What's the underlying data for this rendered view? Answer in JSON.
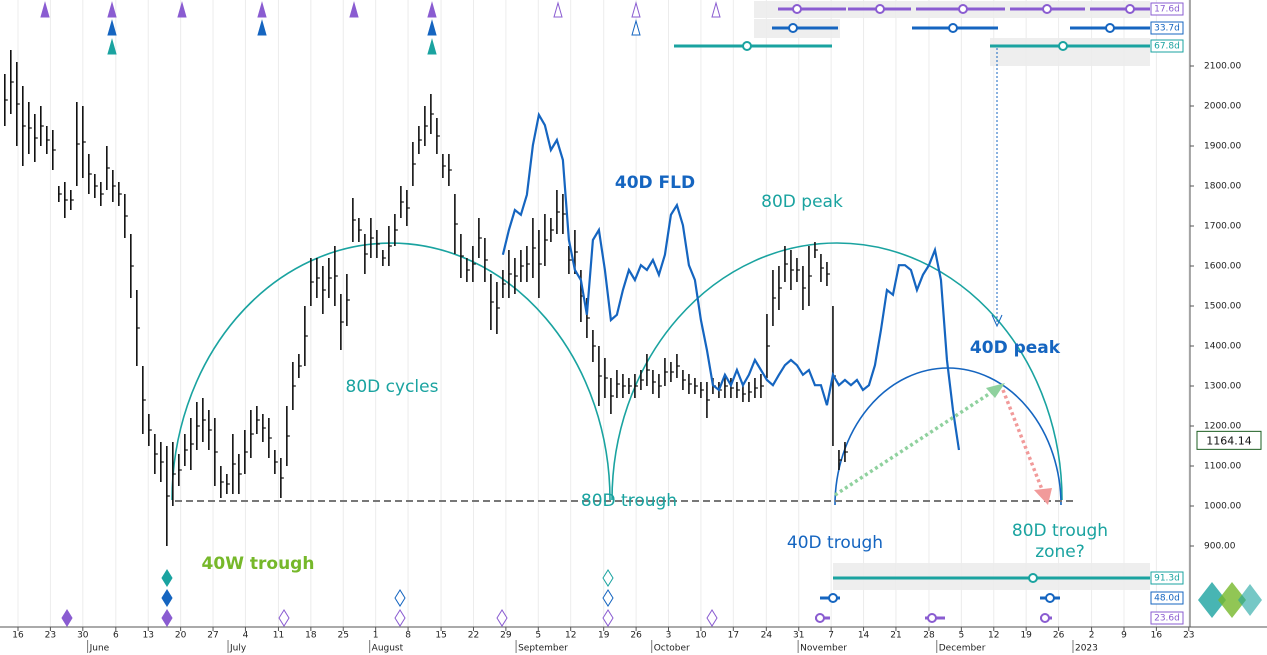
{
  "chart_data": {
    "type": "ohlc",
    "color": "#111111",
    "high": [
      2080,
      2140,
      2110,
      2050,
      2010,
      1980,
      2000,
      1950,
      1940,
      1800,
      1810,
      1790,
      2010,
      2000,
      1880,
      1830,
      1810,
      1900,
      1840,
      1810,
      1780,
      1680,
      1540,
      1350,
      1230,
      1180,
      1160,
      1150,
      1160,
      1130,
      1180,
      1220,
      1260,
      1270,
      1240,
      1220,
      1100,
      1080,
      1180,
      1130,
      1190,
      1240,
      1250,
      1230,
      1220,
      1140,
      1120,
      1250,
      1360,
      1380,
      1500,
      1620,
      1620,
      1600,
      1620,
      1650,
      1530,
      1580,
      1770,
      1720,
      1680,
      1720,
      1690,
      1640,
      1700,
      1730,
      1800,
      1790,
      1910,
      1950,
      2000,
      2030,
      1970,
      1880,
      1880,
      1780,
      1680,
      1620,
      1650,
      1720,
      1670,
      1580,
      1560,
      1590,
      1640,
      1620,
      1640,
      1650,
      1720,
      1690,
      1730,
      1720,
      1790,
      1780,
      1650,
      1690,
      1590,
      1520,
      1440,
      1400,
      1370,
      1320,
      1340,
      1330,
      1320,
      1330,
      1340,
      1380,
      1340,
      1330,
      1370,
      1360,
      1380,
      1340,
      1330,
      1320,
      1310,
      1310,
      1320,
      1310,
      1330,
      1320,
      1310,
      1300,
      1310,
      1320,
      1330,
      1480,
      1590,
      1600,
      1650,
      1640,
      1620,
      1600,
      1650,
      1660,
      1630,
      1610,
      1500,
      1140,
      1160
    ],
    "low": [
      1950,
      1980,
      1900,
      1850,
      1880,
      1860,
      1900,
      1880,
      1840,
      1760,
      1720,
      1740,
      1800,
      1820,
      1780,
      1770,
      1750,
      1790,
      1760,
      1750,
      1670,
      1520,
      1350,
      1180,
      1150,
      1080,
      1060,
      900,
      1000,
      1050,
      1100,
      1090,
      1140,
      1160,
      1140,
      1050,
      1020,
      1030,
      1030,
      1030,
      1080,
      1120,
      1180,
      1160,
      1120,
      1080,
      1020,
      1100,
      1240,
      1320,
      1350,
      1500,
      1520,
      1480,
      1520,
      1500,
      1390,
      1450,
      1660,
      1660,
      1580,
      1620,
      1620,
      1600,
      1600,
      1650,
      1720,
      1700,
      1800,
      1880,
      1900,
      1930,
      1880,
      1820,
      1800,
      1630,
      1570,
      1560,
      1560,
      1620,
      1560,
      1440,
      1430,
      1520,
      1520,
      1530,
      1560,
      1560,
      1570,
      1520,
      1600,
      1660,
      1680,
      1680,
      1580,
      1580,
      1460,
      1420,
      1360,
      1250,
      1270,
      1230,
      1270,
      1270,
      1280,
      1270,
      1290,
      1300,
      1280,
      1270,
      1300,
      1310,
      1320,
      1290,
      1280,
      1280,
      1270,
      1220,
      1280,
      1270,
      1270,
      1270,
      1270,
      1260,
      1260,
      1270,
      1270,
      1320,
      1450,
      1490,
      1560,
      1540,
      1560,
      1490,
      1500,
      1620,
      1560,
      1550,
      1150,
      1090,
      1110
    ],
    "fld": {
      "color": "#1565c0",
      "start": 83,
      "values": [
        1628,
        1690,
        1740,
        1728,
        1778,
        1902,
        1978,
        1952,
        1890,
        1915,
        1865,
        1665,
        1590,
        1565,
        1478,
        1665,
        1690,
        1590,
        1465,
        1478,
        1540,
        1590,
        1565,
        1602,
        1590,
        1615,
        1578,
        1628,
        1728,
        1752,
        1702,
        1602,
        1565,
        1465,
        1390,
        1302,
        1290,
        1328,
        1302,
        1340,
        1302,
        1328,
        1365,
        1340,
        1315,
        1302,
        1328,
        1352,
        1365,
        1352,
        1328,
        1340,
        1302,
        1302,
        1252,
        1328,
        1302,
        1315,
        1302,
        1315,
        1290,
        1302,
        1352,
        1440,
        1540,
        1528,
        1602,
        1602,
        1590,
        1540,
        1578,
        1602,
        1640,
        1565,
        1365,
        1240,
        1140
      ]
    },
    "xlim": [
      -0.8,
      197.5
    ],
    "ylim": [
      697.5,
      2265
    ],
    "grid": "x",
    "xticks": [
      {
        "value": 2.2,
        "label": "16"
      },
      {
        "value": 7.6,
        "label": "23"
      },
      {
        "value": 13.0,
        "label": "30"
      },
      {
        "value": 18.5,
        "label": "6"
      },
      {
        "value": 23.9,
        "label": "13"
      },
      {
        "value": 29.3,
        "label": "20"
      },
      {
        "value": 34.7,
        "label": "27"
      },
      {
        "value": 40.1,
        "label": "4"
      },
      {
        "value": 45.6,
        "label": "11"
      },
      {
        "value": 51.0,
        "label": "18"
      },
      {
        "value": 56.4,
        "label": "25"
      },
      {
        "value": 61.8,
        "label": "1"
      },
      {
        "value": 67.2,
        "label": "8"
      },
      {
        "value": 72.7,
        "label": "15"
      },
      {
        "value": 78.1,
        "label": "22"
      },
      {
        "value": 83.5,
        "label": "29"
      },
      {
        "value": 88.9,
        "label": "5"
      },
      {
        "value": 94.3,
        "label": "12"
      },
      {
        "value": 99.8,
        "label": "19"
      },
      {
        "value": 105.2,
        "label": "26"
      },
      {
        "value": 110.6,
        "label": "3"
      },
      {
        "value": 116.0,
        "label": "10"
      },
      {
        "value": 121.4,
        "label": "17"
      },
      {
        "value": 126.9,
        "label": "24"
      },
      {
        "value": 132.3,
        "label": "31"
      },
      {
        "value": 137.7,
        "label": "7"
      },
      {
        "value": 143.1,
        "label": "14"
      },
      {
        "value": 148.5,
        "label": "21"
      },
      {
        "value": 154.0,
        "label": "28"
      },
      {
        "value": 159.4,
        "label": "5"
      },
      {
        "value": 164.8,
        "label": "12"
      },
      {
        "value": 170.2,
        "label": "19"
      },
      {
        "value": 175.6,
        "label": "26"
      },
      {
        "value": 181.1,
        "label": "2"
      },
      {
        "value": 186.5,
        "label": "9"
      },
      {
        "value": 191.9,
        "label": "16"
      },
      {
        "value": 197.3,
        "label": "23"
      }
    ],
    "months": [
      {
        "value": 13.8,
        "label": "June"
      },
      {
        "value": 37.2,
        "label": "July"
      },
      {
        "value": 60.8,
        "label": "August"
      },
      {
        "value": 85.2,
        "label": "September"
      },
      {
        "value": 107.8,
        "label": "October"
      },
      {
        "value": 132.2,
        "label": "November"
      },
      {
        "value": 155.3,
        "label": "December"
      },
      {
        "value": 178.0,
        "label": "2023"
      }
    ],
    "yticks": [
      {
        "value": 2100,
        "label": "2100.00"
      },
      {
        "value": 2000,
        "label": "2000.00"
      },
      {
        "value": 1900,
        "label": "1900.00"
      },
      {
        "value": 1800,
        "label": "1800.00"
      },
      {
        "value": 1700,
        "label": "1700.00"
      },
      {
        "value": 1600,
        "label": "1600.00"
      },
      {
        "value": 1500,
        "label": "1500.00"
      },
      {
        "value": 1400,
        "label": "1400.00"
      },
      {
        "value": 1300,
        "label": "1300.00"
      },
      {
        "value": 1200,
        "label": "1200.00"
      },
      {
        "value": 1100,
        "label": "1100.00"
      },
      {
        "value": 1000,
        "label": "1000.00"
      },
      {
        "value": 900,
        "label": "900.00"
      }
    ],
    "last": 1164.14,
    "annotations": [
      "40D FLD",
      "80D peak",
      "80D cycles",
      "80D trough",
      "40W trough",
      "40D trough",
      "40D peak",
      "80D trough",
      "zone?"
    ],
    "cycles_top": [
      "17.6d",
      "33.7d",
      "67.8d"
    ],
    "cycles_bottom": [
      "91.3d",
      "48.0d",
      "23.6d"
    ]
  }
}
